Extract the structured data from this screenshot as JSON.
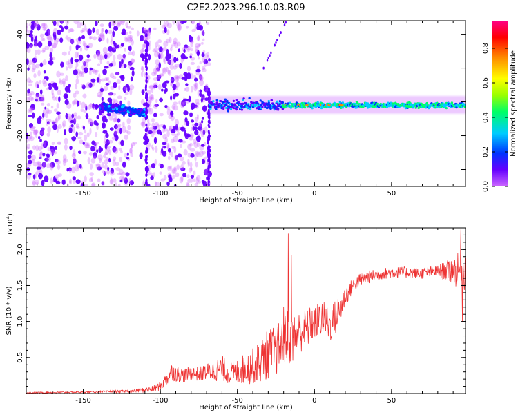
{
  "title": "C2E2.2023.296.10.03.R09",
  "colors": {
    "snr_line": "#ee3333",
    "cmap": [
      "#cc66ff",
      "#6600ff",
      "#0033ff",
      "#00ccff",
      "#00ff66",
      "#99ff00",
      "#ffff00",
      "#ff8800",
      "#ff0000",
      "#ff0088"
    ]
  },
  "chart_data": [
    {
      "type": "heatmap",
      "xlabel": "Height of straight line (km)",
      "ylabel": "Frequency (Hz)",
      "xlim": [
        -187,
        98
      ],
      "ylim": [
        -50,
        48
      ],
      "xticks": [
        -150,
        -100,
        -50,
        0,
        50
      ],
      "xtick_labels": [
        "-150",
        "-100",
        "-50",
        "0",
        "50"
      ],
      "yticks": [
        -40,
        -20,
        0,
        20,
        40
      ],
      "ytick_labels": [
        "-40",
        "-20",
        "0",
        "20",
        "40"
      ],
      "colorbar": {
        "label": "Normalized spectral amplitude",
        "range": [
          0,
          0.96
        ],
        "ticks": [
          0.0,
          0.2,
          0.4,
          0.6,
          0.8
        ],
        "tick_labels": [
          "0.0",
          "0.2",
          "0.4",
          "0.6",
          "0.8"
        ]
      },
      "features": {
        "noise_region_x": [
          -187,
          -68
        ],
        "signal_band_center_hz": -2,
        "signal_band_x": [
          -68,
          98
        ],
        "strong_signal_x": [
          -20,
          98
        ]
      }
    },
    {
      "type": "line",
      "xlabel": "Height of straight line (km)",
      "ylabel": "SNR (10 * v/v)",
      "multiplier_label": "(x10",
      "multiplier_exp": "4",
      "multiplier_close": ")",
      "xlim": [
        -187,
        98
      ],
      "ylim": [
        0,
        2.3
      ],
      "xticks": [
        -150,
        -100,
        -50,
        0,
        50
      ],
      "xtick_labels": [
        "-150",
        "-100",
        "-50",
        "0",
        "50"
      ],
      "yticks": [
        0.5,
        1.0,
        1.5,
        2.0
      ],
      "ytick_labels": [
        "0.5",
        "1.0",
        "1.5",
        "2.0"
      ],
      "series": [
        {
          "x": [
            -187,
            -150,
            -120,
            -108,
            -100,
            -96,
            -93,
            -90,
            -85,
            -80,
            -75,
            -70,
            -65,
            -60,
            -55,
            -50,
            -45,
            -40,
            -35,
            -30,
            -25,
            -20,
            -17,
            -15,
            -10,
            -5,
            0,
            5,
            10,
            15,
            20,
            25,
            30,
            40,
            50,
            60,
            70,
            80,
            90,
            98
          ],
          "y": [
            0.01,
            0.02,
            0.03,
            0.05,
            0.1,
            0.2,
            0.3,
            0.28,
            0.25,
            0.28,
            0.27,
            0.3,
            0.32,
            0.35,
            0.28,
            0.3,
            0.35,
            0.38,
            0.45,
            0.55,
            0.6,
            0.7,
            0.8,
            0.75,
            0.85,
            0.9,
            1.0,
            1.05,
            0.95,
            1.1,
            1.35,
            1.5,
            1.58,
            1.65,
            1.68,
            1.68,
            1.67,
            1.7,
            1.7,
            1.72
          ],
          "spread": [
            0.01,
            0.01,
            0.02,
            0.04,
            0.06,
            0.1,
            0.12,
            0.12,
            0.1,
            0.1,
            0.1,
            0.12,
            0.15,
            0.18,
            0.15,
            0.18,
            0.22,
            0.25,
            0.3,
            0.35,
            0.35,
            0.35,
            0.4,
            0.35,
            0.3,
            0.28,
            0.25,
            0.25,
            0.25,
            0.25,
            0.15,
            0.1,
            0.1,
            0.08,
            0.08,
            0.08,
            0.08,
            0.08,
            0.2,
            0.3
          ],
          "spikes": [
            [
              -17,
              2.22
            ],
            [
              -15,
              1.92
            ],
            [
              -20,
              1.2
            ],
            [
              95,
              2.28
            ],
            [
              96,
              1.0
            ]
          ]
        }
      ]
    }
  ]
}
